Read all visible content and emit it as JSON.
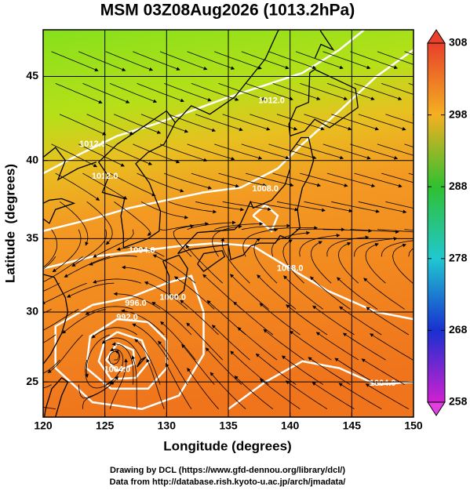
{
  "chart_data": {
    "type": "map",
    "title": "MSM 03Z08Aug2026 (1013.2hPa)",
    "x_label": "Longitude (degrees)",
    "y_label": "Latitude  (degrees)",
    "xlim": [
      120,
      150
    ],
    "ylim": [
      22.4,
      47.6
    ],
    "xticks": [
      120,
      125,
      130,
      135,
      140,
      145,
      150
    ],
    "yticks": [
      25,
      30,
      35,
      40,
      45
    ],
    "projection": "mercator",
    "grid": true,
    "grid_color": "#000000",
    "colorbar": {
      "lim": [
        258,
        308
      ],
      "ticks": [
        258,
        268,
        278,
        288,
        298,
        308
      ]
    },
    "contour_labels": [
      "1012.0",
      "1012.0",
      "1012.0",
      "1008.0",
      "1008.0",
      "1004.0",
      "1004.0",
      "1000.0",
      "996.0",
      "992.0",
      "1004.0"
    ]
  },
  "footer": [
    "Drawing by DCL (https://www.gfd-dennou.org/library/dcl/)",
    "Data from http://database.rish.kyoto-u.ac.jp/arch/jmadata/"
  ]
}
